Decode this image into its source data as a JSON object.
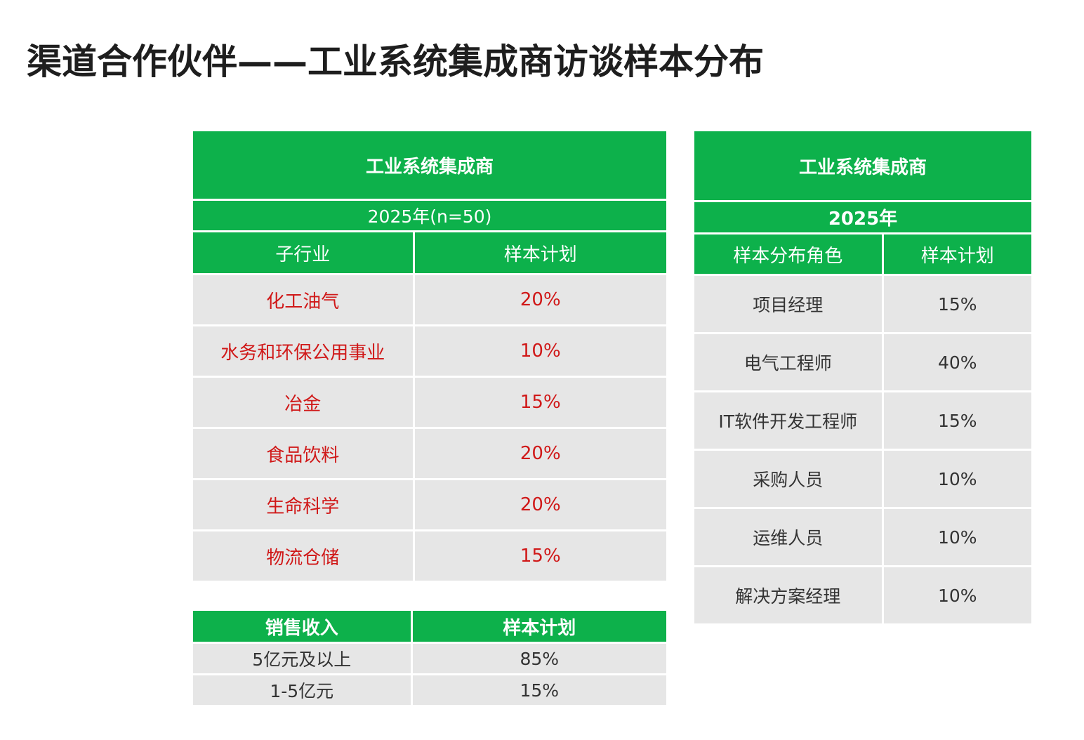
{
  "title": "渠道合作伙伴——工业系统集成商访谈样本分布",
  "colors": {
    "header_green": "#0db14b",
    "cell_gray": "#e6e6e6",
    "highlight_red": "#d01818"
  },
  "subindustry_table": {
    "title": "工业系统集成商",
    "subtitle": "2025年(n=50)",
    "headers": [
      "子行业",
      "样本计划"
    ],
    "rows": [
      {
        "name": "化工油气",
        "value": "20%"
      },
      {
        "name": "水务和环保公用事业",
        "value": "10%"
      },
      {
        "name": "冶金",
        "value": "15%"
      },
      {
        "name": "食品饮料",
        "value": "20%"
      },
      {
        "name": "生命科学",
        "value": "20%"
      },
      {
        "name": "物流仓储",
        "value": "15%"
      }
    ]
  },
  "revenue_table": {
    "headers": [
      "销售收入",
      "样本计划"
    ],
    "rows": [
      {
        "name": "5亿元及以上",
        "value": "85%"
      },
      {
        "name": "1-5亿元",
        "value": "15%"
      }
    ]
  },
  "role_table": {
    "title": "工业系统集成商",
    "subtitle": "2025年",
    "headers": [
      "样本分布角色",
      "样本计划"
    ],
    "rows": [
      {
        "name": "项目经理",
        "value": "15%"
      },
      {
        "name": "电气工程师",
        "value": "40%"
      },
      {
        "name": "IT软件开发工程师",
        "value": "15%"
      },
      {
        "name": "采购人员",
        "value": "10%"
      },
      {
        "name": "运维人员",
        "value": "10%"
      },
      {
        "name": "解决方案经理",
        "value": "10%"
      }
    ]
  }
}
